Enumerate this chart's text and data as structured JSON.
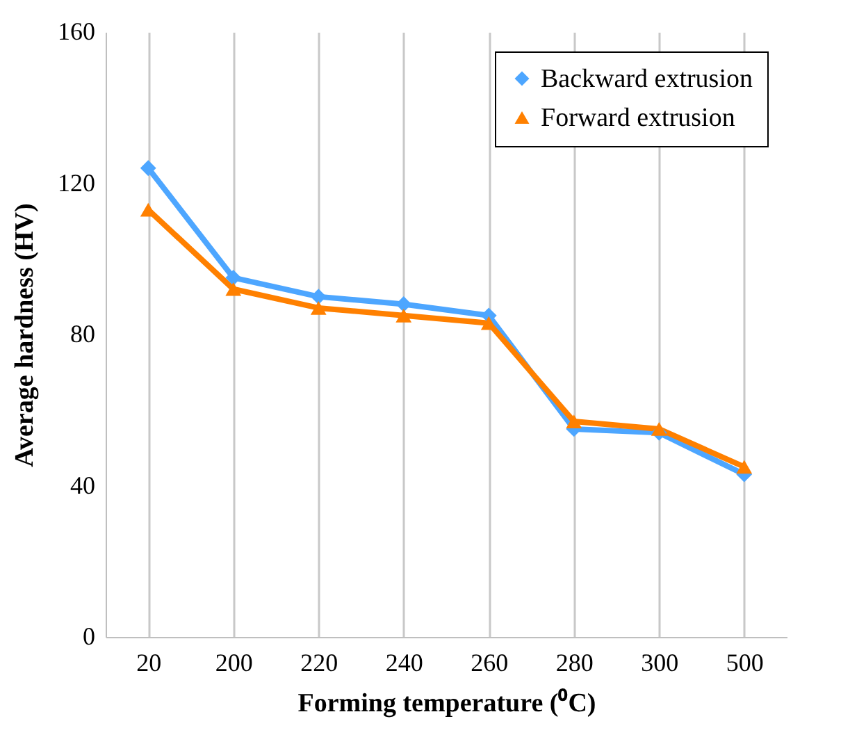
{
  "chart_data": {
    "type": "line",
    "xlabel": "Forming temperature (⁰C)",
    "ylabel": "Average hardness (HV)",
    "categories": [
      "20",
      "200",
      "220",
      "240",
      "260",
      "280",
      "300",
      "500"
    ],
    "series": [
      {
        "name": "Backward extrusion",
        "color": "#4da6ff",
        "marker": "diamond",
        "values": [
          124,
          95,
          90,
          88,
          85,
          55,
          54,
          43
        ]
      },
      {
        "name": "Forward extrusion",
        "color": "#ff8000",
        "marker": "triangle",
        "values": [
          113,
          92,
          87,
          85,
          83,
          57,
          55,
          45
        ]
      }
    ],
    "ylim": [
      0,
      160
    ],
    "yticks": [
      0,
      40,
      80,
      120,
      160
    ],
    "grid": "x",
    "legend": "top right",
    "line_style": "solid"
  }
}
